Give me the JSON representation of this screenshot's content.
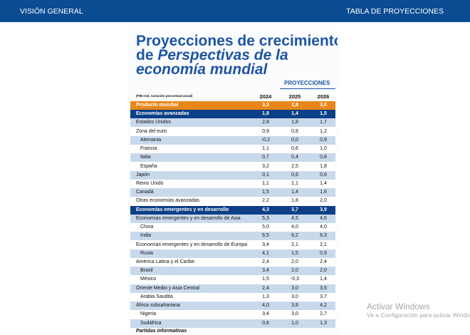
{
  "nav": {
    "left": "VISIÓN GENERAL",
    "right": "TABLA DE PROYECCIONES"
  },
  "card": {
    "title": {
      "line1": "Proyecciones de crecimiento",
      "line2_prefix": "de ",
      "line2_italic": "Perspectivas de la",
      "line3_italic": "economía mundial"
    },
    "projections_label": "PROYECCIONES",
    "header": {
      "note": "(PIB real, variación porcentual anual)",
      "columns": [
        "2024",
        "2025",
        "2026"
      ]
    },
    "rows": [
      {
        "label": "Producto mundial",
        "values": [
          "3,3",
          "2,8",
          "3,0"
        ],
        "kind": "orange"
      },
      {
        "label": "Economías avanzadas",
        "values": [
          "1,8",
          "1,4",
          "1,5"
        ],
        "kind": "navy"
      },
      {
        "label": "Estados Unidos",
        "values": [
          "2,8",
          "1,8",
          "1,7"
        ],
        "kind": "group"
      },
      {
        "label": "Zona del euro",
        "values": [
          "0,9",
          "0,8",
          "1,2"
        ],
        "kind": "group"
      },
      {
        "label": "Alemania",
        "values": [
          "-0,2",
          "0,0",
          "0,9"
        ],
        "kind": "sub"
      },
      {
        "label": "Francia",
        "values": [
          "1,1",
          "0,6",
          "1,0"
        ],
        "kind": "sub"
      },
      {
        "label": "Italia",
        "values": [
          "0,7",
          "0,4",
          "0,8"
        ],
        "kind": "sub"
      },
      {
        "label": "España",
        "values": [
          "3,2",
          "2,5",
          "1,8"
        ],
        "kind": "sub"
      },
      {
        "label": "Japón",
        "values": [
          "0,1",
          "0,6",
          "0,6"
        ],
        "kind": "group"
      },
      {
        "label": "Reino Unido",
        "values": [
          "1,1",
          "1,1",
          "1,4"
        ],
        "kind": "group"
      },
      {
        "label": "Canadá",
        "values": [
          "1,5",
          "1,4",
          "1,6"
        ],
        "kind": "group"
      },
      {
        "label": "Otras economías avanzadas",
        "values": [
          "2,2",
          "1,8",
          "2,0"
        ],
        "kind": "group"
      },
      {
        "label": "Economías emergentes y en desarrollo",
        "values": [
          "4,3",
          "3,7",
          "3,9"
        ],
        "kind": "navy"
      },
      {
        "label": "Economías emergentes y en desarrollo de Asia",
        "values": [
          "5,3",
          "4,5",
          "4,6"
        ],
        "kind": "group"
      },
      {
        "label": "China",
        "values": [
          "5,0",
          "4,0",
          "4,0"
        ],
        "kind": "sub"
      },
      {
        "label": "India",
        "values": [
          "6,5",
          "6,2",
          "6,3"
        ],
        "kind": "sub"
      },
      {
        "label": "Economías emergentes y en desarrollo de Europa",
        "values": [
          "3,4",
          "2,1",
          "2,1"
        ],
        "kind": "group"
      },
      {
        "label": "Rusia",
        "values": [
          "4,1",
          "1,5",
          "0,9"
        ],
        "kind": "sub"
      },
      {
        "label": "América Latina y el Caribe",
        "values": [
          "2,4",
          "2,0",
          "2,4"
        ],
        "kind": "group"
      },
      {
        "label": "Brasil",
        "values": [
          "3,4",
          "2,0",
          "2,0"
        ],
        "kind": "sub"
      },
      {
        "label": "México",
        "values": [
          "1,5",
          "-0,3",
          "1,4"
        ],
        "kind": "sub"
      },
      {
        "label": "Oriente Medio y Asia Central",
        "values": [
          "2,4",
          "3,0",
          "3,5"
        ],
        "kind": "group"
      },
      {
        "label": "Arabia Saudita",
        "values": [
          "1,3",
          "3,0",
          "3,7"
        ],
        "kind": "sub"
      },
      {
        "label": "África subsahariana",
        "values": [
          "4,0",
          "3,8",
          "4,2"
        ],
        "kind": "group"
      },
      {
        "label": "Nigeria",
        "values": [
          "3,4",
          "3,0",
          "2,7"
        ],
        "kind": "sub"
      },
      {
        "label": "Sudáfrica",
        "values": [
          "0,6",
          "1,0",
          "1,3"
        ],
        "kind": "sub"
      }
    ],
    "footer": "Partidas informativas"
  },
  "watermark": {
    "title": "Activar Windows",
    "subtitle": "Ve a Configuración para activar Windows"
  }
}
